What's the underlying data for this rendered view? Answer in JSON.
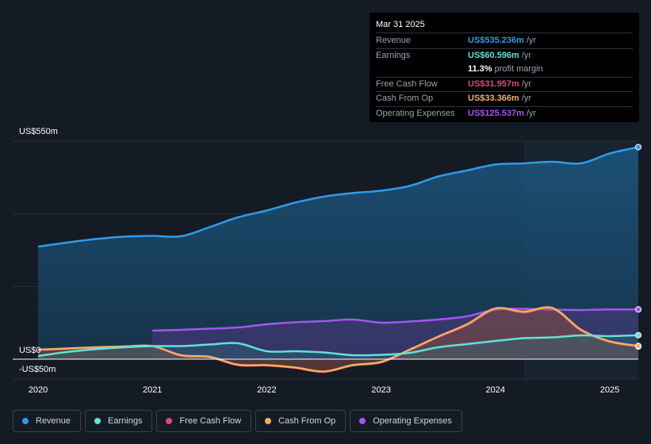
{
  "tooltip": {
    "date": "Mar 31 2025",
    "rows": [
      {
        "label": "Revenue",
        "value": "US$535.236m",
        "unit": "/yr",
        "color": "#2e9ce8"
      },
      {
        "label": "Earnings",
        "value": "US$60.596m",
        "unit": "/yr",
        "color": "#5fe3d6"
      },
      {
        "label": "",
        "value": "11.3%",
        "unit": "profit margin",
        "color": "#ffffff"
      },
      {
        "label": "Free Cash Flow",
        "value": "US$31.957m",
        "unit": "/yr",
        "color": "#e0487a"
      },
      {
        "label": "Cash From Op",
        "value": "US$33.366m",
        "unit": "/yr",
        "color": "#f0b060"
      },
      {
        "label": "Operating Expenses",
        "value": "US$125.537m",
        "unit": "/yr",
        "color": "#a555f0"
      }
    ]
  },
  "chart_data": {
    "type": "area",
    "title": "",
    "xlabel": "",
    "ylabel": "",
    "y_top_label": "US$550m",
    "y_zero_label": "US$0",
    "y_bottom_label": "-US$50m",
    "ylim": [
      -50,
      550
    ],
    "xlim": [
      2020,
      2025.25
    ],
    "x_ticks": [
      2020,
      2021,
      2022,
      2023,
      2024,
      2025
    ],
    "x_tick_labels": [
      "2020",
      "2021",
      "2022",
      "2023",
      "2024",
      "2025"
    ],
    "highlight_start": 2024.25,
    "series": [
      {
        "name": "Revenue",
        "color": "#2e9ce8",
        "x": [
          2020.0,
          2020.25,
          2020.5,
          2020.75,
          2021.0,
          2021.25,
          2021.5,
          2021.75,
          2022.0,
          2022.25,
          2022.5,
          2022.75,
          2023.0,
          2023.25,
          2023.5,
          2023.75,
          2024.0,
          2024.25,
          2024.5,
          2024.75,
          2025.0,
          2025.25
        ],
        "values": [
          284,
          294,
          303,
          309,
          311,
          310,
          333,
          358,
          375,
          395,
          410,
          419,
          425,
          437,
          461,
          476,
          491,
          494,
          498,
          494,
          519,
          535
        ]
      },
      {
        "name": "Earnings",
        "color": "#5fe3d6",
        "x": [
          2020.0,
          2020.25,
          2020.5,
          2020.75,
          2021.0,
          2021.25,
          2021.5,
          2021.75,
          2022.0,
          2022.25,
          2022.5,
          2022.75,
          2023.0,
          2023.25,
          2023.5,
          2023.75,
          2024.0,
          2024.25,
          2024.5,
          2024.75,
          2025.0,
          2025.25
        ],
        "values": [
          8,
          18,
          25,
          30,
          33,
          33,
          37,
          40,
          20,
          20,
          17,
          10,
          11,
          16,
          30,
          38,
          46,
          53,
          55,
          60,
          58,
          60.6
        ]
      },
      {
        "name": "Free Cash Flow",
        "color": "#e0487a",
        "x": [
          2020.0,
          2020.25,
          2020.5,
          2020.75,
          2021.0,
          2021.25,
          2021.5,
          2021.75,
          2022.0,
          2022.25,
          2022.5,
          2022.75,
          2023.0,
          2023.25,
          2023.5,
          2023.75,
          2024.0,
          2024.25,
          2024.5,
          2024.75,
          2025.0,
          2025.25
        ],
        "values": [
          23,
          26,
          29,
          31,
          33,
          9,
          5,
          -15,
          -16,
          -22,
          -32,
          -16,
          -8,
          23,
          56,
          86,
          126,
          118,
          127,
          72,
          44,
          32
        ]
      },
      {
        "name": "Cash From Op",
        "color": "#f0b060",
        "x": [
          2020.0,
          2020.25,
          2020.5,
          2020.75,
          2021.0,
          2021.25,
          2021.5,
          2021.75,
          2022.0,
          2022.25,
          2022.5,
          2022.75,
          2023.0,
          2023.25,
          2023.5,
          2023.75,
          2024.0,
          2024.25,
          2024.5,
          2024.75,
          2025.0,
          2025.25
        ],
        "values": [
          24,
          27,
          30,
          32,
          33,
          10,
          6,
          -14,
          -15,
          -21,
          -31,
          -15,
          -7,
          24,
          57,
          88,
          128,
          120,
          129,
          74,
          45,
          33.4
        ]
      },
      {
        "name": "Operating Expenses",
        "color": "#a555f0",
        "start": 2021.0,
        "x": [
          2021.0,
          2021.25,
          2021.5,
          2021.75,
          2022.0,
          2022.25,
          2022.5,
          2022.75,
          2023.0,
          2023.25,
          2023.5,
          2023.75,
          2024.0,
          2024.25,
          2024.5,
          2024.75,
          2025.0,
          2025.25
        ],
        "values": [
          72,
          74,
          77,
          80,
          88,
          93,
          96,
          100,
          92,
          95,
          100,
          108,
          125,
          127,
          125,
          124,
          125.5,
          125.5
        ]
      }
    ]
  },
  "legend": [
    {
      "label": "Revenue",
      "color": "#2e9ce8"
    },
    {
      "label": "Earnings",
      "color": "#5fe3d6"
    },
    {
      "label": "Free Cash Flow",
      "color": "#e0487a"
    },
    {
      "label": "Cash From Op",
      "color": "#f0b060"
    },
    {
      "label": "Operating Expenses",
      "color": "#a555f0"
    }
  ]
}
